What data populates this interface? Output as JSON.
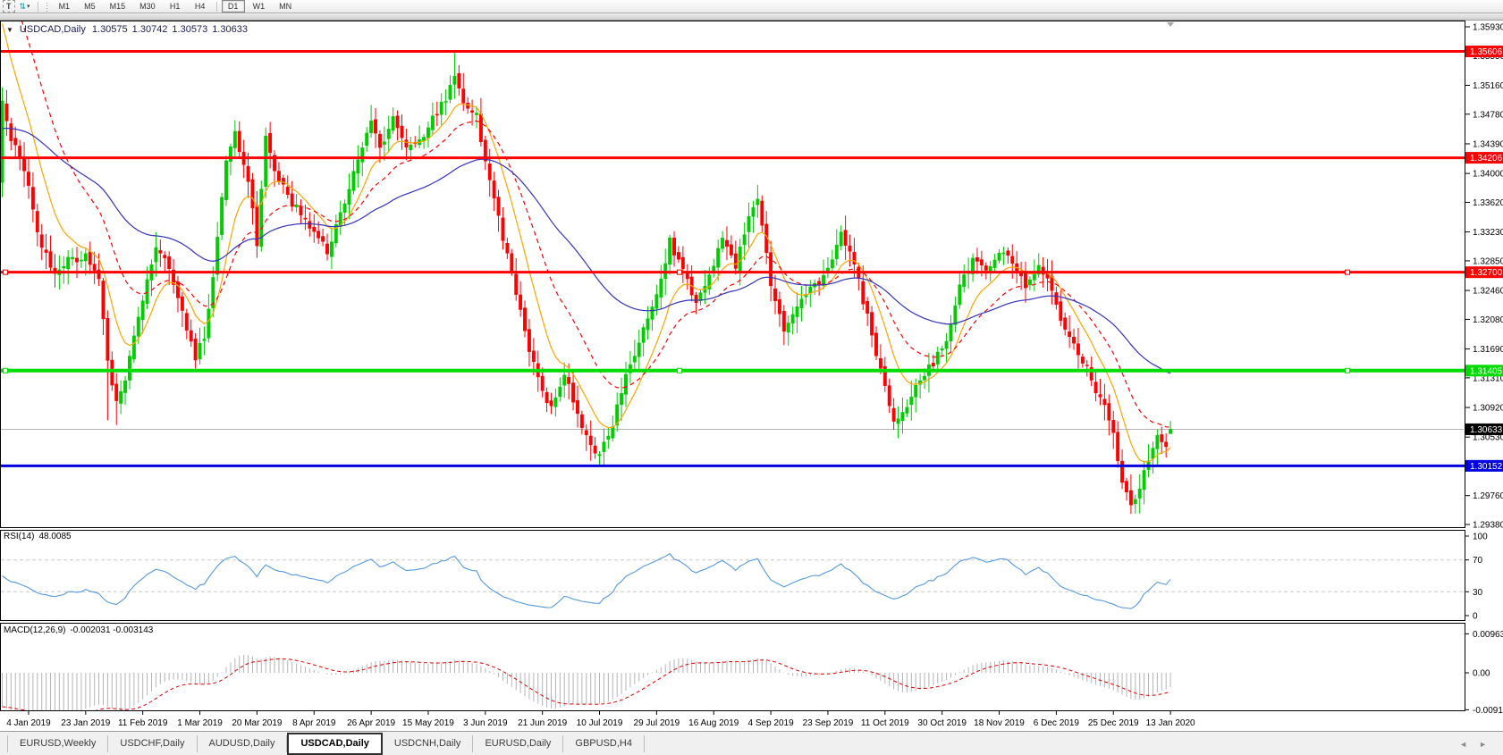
{
  "toolbar": {
    "text_tool": "T",
    "arrows_icon": "⇅",
    "dropdown_caret": "▾",
    "timeframes": [
      "M1",
      "M5",
      "M15",
      "M30",
      "H1",
      "H4",
      "D1",
      "W1",
      "MN"
    ],
    "active_timeframe": "D1"
  },
  "chart_header": {
    "collapse_icon": "▼",
    "symbol": "USDCAD,Daily",
    "open": "1.30575",
    "high": "1.30742",
    "low": "1.30573",
    "close": "1.30633"
  },
  "rsi_panel": {
    "label": "RSI(14)",
    "value": "48.0085"
  },
  "macd_panel": {
    "label": "MACD(12,26,9)",
    "value": "-0.002031 -0.003143"
  },
  "tabs": {
    "items": [
      "EURUSD,Weekly",
      "USDCHF,Daily",
      "AUDUSD,Daily",
      "USDCAD,Daily",
      "USDCNH,Daily",
      "EURUSD,Daily",
      "GBPUSD,H4"
    ],
    "active_index": 3,
    "scroll_left": "◄",
    "scroll_right": "►"
  },
  "chart_data": {
    "type": "candlestick",
    "symbol": "USDCAD",
    "timeframe": "Daily",
    "last_ohlc": {
      "open": 1.30575,
      "high": 1.30742,
      "low": 1.30573,
      "close": 1.30633
    },
    "first_open": 1.3388,
    "bars_total": 267,
    "colors": {
      "up": "#00CC00",
      "down": "#FF0000",
      "ma_fast": "#FFA500",
      "ma_mid": "#FF0000",
      "ma_slow": "#3333BB",
      "rsi": "#5599DD",
      "rsi_levels": "#C8C8C8",
      "macd_hist": "#B4B4B4",
      "macd_signal": "#E00000",
      "current_price_line": "#B4B4B4",
      "current_price_badge": "#000000",
      "axis_text": "#000000"
    },
    "y_axis": {
      "top_price": 1.3593,
      "bottom_price": 1.2938,
      "ticks": [
        1.3593,
        1.3555,
        1.3516,
        1.3478,
        1.3439,
        1.34,
        1.3362,
        1.3323,
        1.3285,
        1.3246,
        1.3208,
        1.3169,
        1.3131,
        1.3092,
        1.3053,
        1.2976,
        1.2938
      ]
    },
    "x_axis": {
      "bars_per_label": 13,
      "first_label_bar": 6,
      "labels": [
        "4 Jan 2019",
        "23 Jan 2019",
        "11 Feb 2019",
        "1 Mar 2019",
        "20 Mar 2019",
        "8 Apr 2019",
        "26 Apr 2019",
        "15 May 2019",
        "3 Jun 2019",
        "21 Jun 2019",
        "10 Jul 2019",
        "29 Jul 2019",
        "16 Aug 2019",
        "4 Sep 2019",
        "23 Sep 2019",
        "11 Oct 2019",
        "30 Oct 2019",
        "18 Nov 2019",
        "6 Dec 2019",
        "25 Dec 2019",
        "13 Jan 2020"
      ]
    },
    "hlines": [
      {
        "price": 1.35606,
        "label": "1.35606",
        "color": "#FF0000",
        "width": 3,
        "selected": false
      },
      {
        "price": 1.34206,
        "label": "1.34206",
        "color": "#FF0000",
        "width": 3,
        "selected": false
      },
      {
        "price": 1.327,
        "label": "1.32700",
        "color": "#FF0000",
        "width": 3,
        "selected": true
      },
      {
        "price": 1.31405,
        "label": "1.31405",
        "color": "#00DC00",
        "width": 4,
        "selected": true
      },
      {
        "price": 1.30152,
        "label": "1.30152",
        "color": "#0000E0",
        "width": 3,
        "selected": false
      }
    ],
    "current_price": {
      "value": 1.30633,
      "label": "1.30633"
    },
    "close_waypoints": [
      [
        0,
        1.35
      ],
      [
        2,
        1.3445
      ],
      [
        4,
        1.342
      ],
      [
        6,
        1.338
      ],
      [
        9,
        1.33
      ],
      [
        12,
        1.327
      ],
      [
        15,
        1.3285
      ],
      [
        19,
        1.329
      ],
      [
        22,
        1.326
      ],
      [
        24,
        1.315
      ],
      [
        26,
        1.3095
      ],
      [
        28,
        1.313
      ],
      [
        30,
        1.319
      ],
      [
        33,
        1.326
      ],
      [
        35,
        1.3305
      ],
      [
        38,
        1.328
      ],
      [
        41,
        1.3215
      ],
      [
        44,
        1.316
      ],
      [
        46,
        1.3185
      ],
      [
        48,
        1.326
      ],
      [
        51,
        1.342
      ],
      [
        53,
        1.345
      ],
      [
        56,
        1.339
      ],
      [
        58,
        1.331
      ],
      [
        60,
        1.3445
      ],
      [
        63,
        1.339
      ],
      [
        66,
        1.336
      ],
      [
        69,
        1.3345
      ],
      [
        71,
        1.332
      ],
      [
        74,
        1.33
      ],
      [
        78,
        1.336
      ],
      [
        81,
        1.342
      ],
      [
        84,
        1.347
      ],
      [
        86,
        1.343
      ],
      [
        89,
        1.347
      ],
      [
        92,
        1.343
      ],
      [
        95,
        1.3445
      ],
      [
        98,
        1.347
      ],
      [
        101,
        1.35
      ],
      [
        103,
        1.353
      ],
      [
        105,
        1.3495
      ],
      [
        108,
        1.3475
      ],
      [
        110,
        1.342
      ],
      [
        113,
        1.334
      ],
      [
        116,
        1.327
      ],
      [
        119,
        1.319
      ],
      [
        122,
        1.313
      ],
      [
        125,
        1.309
      ],
      [
        128,
        1.314
      ],
      [
        131,
        1.308
      ],
      [
        134,
        1.3045
      ],
      [
        136,
        1.303
      ],
      [
        139,
        1.307
      ],
      [
        142,
        1.313
      ],
      [
        145,
        1.318
      ],
      [
        149,
        1.324
      ],
      [
        152,
        1.331
      ],
      [
        155,
        1.327
      ],
      [
        158,
        1.323
      ],
      [
        161,
        1.327
      ],
      [
        164,
        1.331
      ],
      [
        167,
        1.328
      ],
      [
        170,
        1.334
      ],
      [
        172,
        1.337
      ],
      [
        175,
        1.325
      ],
      [
        178,
        1.319
      ],
      [
        181,
        1.323
      ],
      [
        185,
        1.325
      ],
      [
        188,
        1.327
      ],
      [
        191,
        1.332
      ],
      [
        194,
        1.328
      ],
      [
        197,
        1.321
      ],
      [
        200,
        1.314
      ],
      [
        203,
        1.307
      ],
      [
        206,
        1.309
      ],
      [
        209,
        1.313
      ],
      [
        212,
        1.315
      ],
      [
        215,
        1.318
      ],
      [
        218,
        1.325
      ],
      [
        221,
        1.329
      ],
      [
        224,
        1.327
      ],
      [
        227,
        1.33
      ],
      [
        230,
        1.328
      ],
      [
        233,
        1.325
      ],
      [
        236,
        1.328
      ],
      [
        239,
        1.325
      ],
      [
        242,
        1.319
      ],
      [
        245,
        1.3165
      ],
      [
        248,
        1.313
      ],
      [
        251,
        1.309
      ],
      [
        253,
        1.306
      ],
      [
        255,
        1.2995
      ],
      [
        257,
        1.2965
      ],
      [
        259,
        1.2985
      ],
      [
        261,
        1.3025
      ],
      [
        263,
        1.306
      ],
      [
        265,
        1.3045
      ],
      [
        266,
        1.30633
      ]
    ],
    "wick_overrides": [
      {
        "i": 24,
        "low": 1.3075
      },
      {
        "i": 26,
        "low": 1.3069
      },
      {
        "i": 53,
        "high": 1.347
      },
      {
        "i": 103,
        "high": 1.356
      },
      {
        "i": 172,
        "high": 1.3385
      },
      {
        "i": 257,
        "low": 1.2952
      }
    ],
    "moving_averages": [
      {
        "name": "fast",
        "type": "ema",
        "period": 10,
        "color_key": "ma_fast",
        "dash": "",
        "seed": 1.362
      },
      {
        "name": "mid",
        "type": "ema",
        "period": 22,
        "color_key": "ma_mid",
        "dash": "5 4",
        "seed": 1.37
      },
      {
        "name": "slow",
        "type": "ema",
        "period": 60,
        "color_key": "ma_slow",
        "dash": "",
        "seed": 1.3458
      }
    ],
    "rsi": {
      "period": 14,
      "current": 48.0085,
      "levels": [
        70,
        30
      ],
      "axis_ticks": [
        {
          "v": 100,
          "label": "100"
        },
        {
          "v": 70,
          "label": "70"
        },
        {
          "v": 30,
          "label": "30"
        },
        {
          "v": 0,
          "label": "0"
        }
      ]
    },
    "macd": {
      "fast": 12,
      "slow": 26,
      "signal": 9,
      "current_macd": -0.002031,
      "current_signal": -0.003143,
      "axis_ticks": [
        {
          "v": 0.009633,
          "label": "0.009633"
        },
        {
          "v": 0,
          "label": "0.00"
        },
        {
          "v": -0.009134,
          "label": "-0.009134"
        }
      ]
    },
    "marker_triangle_bar": 266
  }
}
